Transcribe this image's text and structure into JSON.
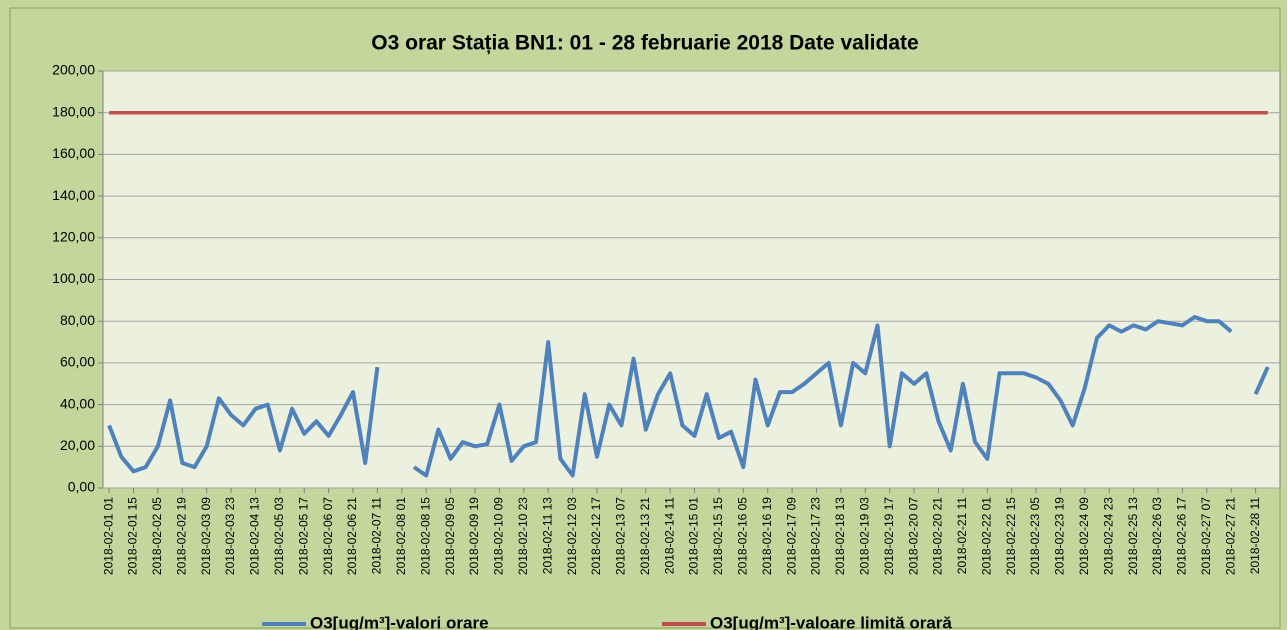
{
  "chart_data": {
    "type": "line",
    "title": "O3 orar Stația BN1: 01 - 28 februarie 2018 Date validate",
    "categories": [
      "2018-02-01 01",
      null,
      "2018-02-01 15",
      null,
      "2018-02-02 05",
      null,
      "2018-02-02 19",
      null,
      "2018-02-03 09",
      null,
      "2018-02-03 23",
      null,
      "2018-02-04 13",
      null,
      "2018-02-05 03",
      null,
      "2018-02-05 17",
      null,
      "2018-02-06 07",
      null,
      "2018-02-06 21",
      null,
      "2018-02-07 11",
      null,
      "2018-02-08 01",
      null,
      "2018-02-08 15",
      null,
      "2018-02-09 05",
      null,
      "2018-02-09 19",
      null,
      "2018-02-10 09",
      null,
      "2018-02-10 23",
      null,
      "2018-02-11 13",
      null,
      "2018-02-12 03",
      null,
      "2018-02-12 17",
      null,
      "2018-02-13 07",
      null,
      "2018-02-13 21",
      null,
      "2018-02-14 11",
      null,
      "2018-02-15 01",
      null,
      "2018-02-15 15",
      null,
      "2018-02-16 05",
      null,
      "2018-02-16 19",
      null,
      "2018-02-17 09",
      null,
      "2018-02-17 23",
      null,
      "2018-02-18 13",
      null,
      "2018-02-19 03",
      null,
      "2018-02-19 17",
      null,
      "2018-02-20 07",
      null,
      "2018-02-20 21",
      null,
      "2018-02-21 11",
      null,
      "2018-02-22 01",
      null,
      "2018-02-22 15",
      null,
      "2018-02-23 05",
      null,
      "2018-02-23 19",
      null,
      "2018-02-24 09",
      null,
      "2018-02-24 23",
      null,
      "2018-02-25 13",
      null,
      "2018-02-26 03",
      null,
      "2018-02-26 17",
      null,
      "2018-02-27 07",
      null,
      "2018-02-27 21",
      null,
      "2018-02-28 11",
      null
    ],
    "series": [
      {
        "name": "O3[ug/m³]-valori orare",
        "color": "#4f81bd",
        "values": [
          30,
          15,
          8,
          10,
          20,
          42,
          12,
          10,
          20,
          43,
          35,
          30,
          38,
          40,
          18,
          38,
          26,
          32,
          25,
          35,
          46,
          12,
          58,
          null,
          null,
          10,
          6,
          28,
          14,
          22,
          20,
          21,
          40,
          13,
          20,
          22,
          70,
          14,
          6,
          45,
          15,
          40,
          30,
          62,
          28,
          45,
          55,
          30,
          25,
          45,
          24,
          27,
          10,
          52,
          30,
          46,
          46,
          50,
          55,
          60,
          30,
          60,
          55,
          78,
          20,
          55,
          50,
          55,
          32,
          18,
          50,
          22,
          14,
          55,
          55,
          55,
          53,
          50,
          42,
          30,
          48,
          72,
          78,
          75,
          78,
          76,
          80,
          79,
          78,
          82,
          80,
          80,
          75,
          null,
          45,
          58
        ]
      },
      {
        "name": "O3[ug/m³]-valoare limită orară",
        "color": "#c0504d",
        "values": [
          180,
          180,
          180,
          180,
          180,
          180,
          180,
          180,
          180,
          180,
          180,
          180,
          180,
          180,
          180,
          180,
          180,
          180,
          180,
          180,
          180,
          180,
          180,
          180,
          180,
          180,
          180,
          180,
          180,
          180,
          180,
          180,
          180,
          180,
          180,
          180,
          180,
          180,
          180,
          180,
          180,
          180,
          180,
          180,
          180,
          180,
          180,
          180,
          180,
          180,
          180,
          180,
          180,
          180,
          180,
          180,
          180,
          180,
          180,
          180,
          180,
          180,
          180,
          180,
          180,
          180,
          180,
          180,
          180,
          180,
          180,
          180,
          180,
          180,
          180,
          180,
          180,
          180,
          180,
          180,
          180,
          180,
          180,
          180,
          180,
          180,
          180,
          180,
          180,
          180,
          180,
          180,
          180,
          180,
          180,
          180
        ]
      }
    ],
    "ylim": [
      0,
      200
    ],
    "yticks": [
      {
        "value": 0,
        "label": "0,00"
      },
      {
        "value": 20,
        "label": "20,00"
      },
      {
        "value": 40,
        "label": "40,00"
      },
      {
        "value": 60,
        "label": "60,00"
      },
      {
        "value": 80,
        "label": "80,00"
      },
      {
        "value": 100,
        "label": "100,00"
      },
      {
        "value": 120,
        "label": "120,00"
      },
      {
        "value": 140,
        "label": "140,00"
      },
      {
        "value": 160,
        "label": "160,00"
      },
      {
        "value": 180,
        "label": "180,00"
      },
      {
        "value": 200,
        "label": "200,00"
      }
    ],
    "grid": true,
    "legend": "bottom"
  }
}
